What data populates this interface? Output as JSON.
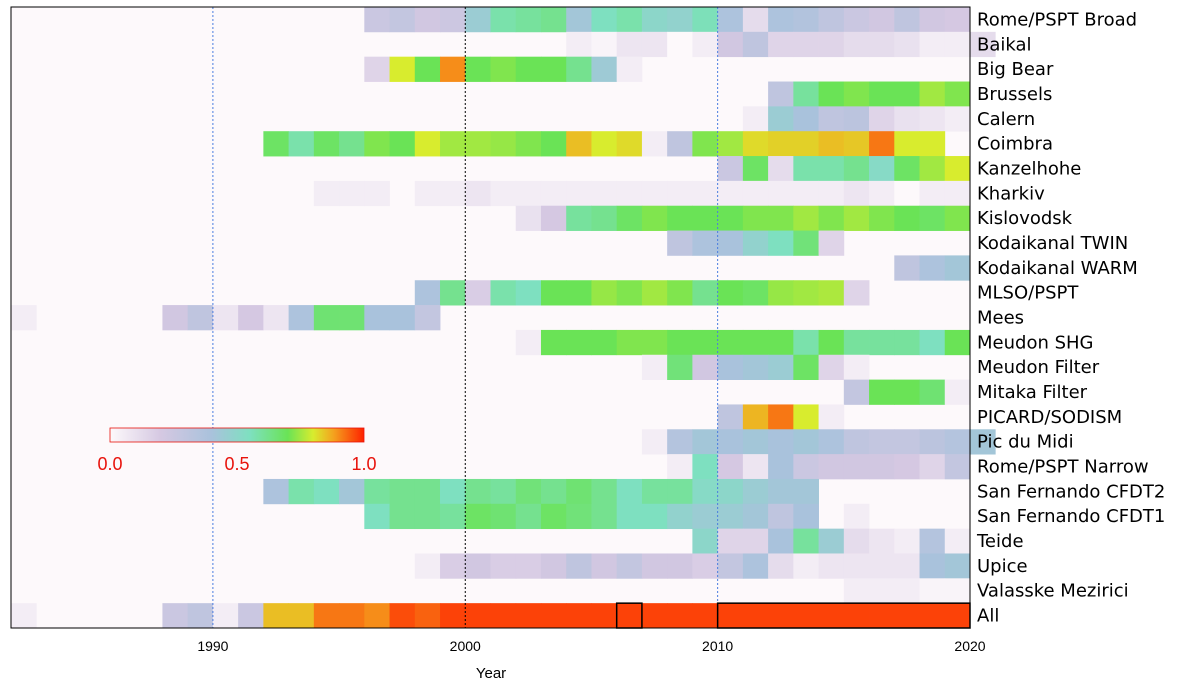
{
  "chart_data": {
    "type": "heatmap",
    "title": "",
    "xlabel": "Year",
    "ylabel": "",
    "xlim": [
      1982,
      2020
    ],
    "xticks": [
      1990,
      2000,
      2010,
      2020
    ],
    "grid_blue_years": [
      1990,
      2010
    ],
    "grid_black_years": [
      2000
    ],
    "colorbar": {
      "min": 0.0,
      "max": 1.0,
      "ticks": [
        "0.0",
        "0.5",
        "1.0"
      ]
    },
    "highlight_boxes_all_row": [
      [
        2006,
        2007
      ],
      [
        2010,
        2020
      ]
    ],
    "rows": [
      {
        "name": "Rome/PSPT Broad",
        "start": 1996,
        "values": [
          0.25,
          0.28,
          0.22,
          0.24,
          0.45,
          0.58,
          0.6,
          0.62,
          0.42,
          0.55,
          0.58,
          0.5,
          0.48,
          0.56,
          0.38,
          0.12,
          0.38,
          0.36,
          0.3,
          0.25,
          0.22,
          0.3,
          0.22,
          0.2
        ]
      },
      {
        "name": "Baikal",
        "start": 2004,
        "values": [
          0.05,
          0.02,
          0.08,
          0.08,
          0.0,
          0.05,
          0.22,
          0.3,
          0.15,
          0.15,
          0.15,
          0.12,
          0.12,
          0.1,
          0.05,
          0.05,
          0.12
        ]
      },
      {
        "name": "Big Bear",
        "start": 1996,
        "values": [
          0.15,
          0.8,
          0.7,
          0.9,
          0.7,
          0.72,
          0.7,
          0.7,
          0.62,
          0.44,
          0.05
        ]
      },
      {
        "name": "Brussels",
        "start": 2012,
        "values": [
          0.3,
          0.6,
          0.7,
          0.72,
          0.7,
          0.7,
          0.75,
          0.72
        ]
      },
      {
        "name": "Calern",
        "start": 2011,
        "values": [
          0.05,
          0.45,
          0.4,
          0.3,
          0.32,
          0.15,
          0.1,
          0.08,
          0.05
        ]
      },
      {
        "name": "Coimbra",
        "start": 1992,
        "values": [
          0.68,
          0.58,
          0.68,
          0.62,
          0.72,
          0.7,
          0.8,
          0.75,
          0.75,
          0.74,
          0.72,
          0.7,
          0.85,
          0.8,
          0.82,
          0.05,
          0.3,
          0.72,
          0.75,
          0.82,
          0.83,
          0.83,
          0.85,
          0.84,
          0.92,
          0.8,
          0.8
        ]
      },
      {
        "name": "Kanzelhohe",
        "start": 2010,
        "values": [
          0.25,
          0.68,
          0.12,
          0.58,
          0.58,
          0.62,
          0.52,
          0.68,
          0.75,
          0.8
        ]
      },
      {
        "name": "Kharkiv",
        "start": 1994,
        "values": [
          0.05,
          0.05,
          0.05,
          null,
          0.05,
          0.05,
          0.08,
          0.05,
          0.05,
          0.05,
          0.05,
          0.05,
          0.05,
          0.05,
          0.05,
          0.05,
          0.05,
          0.05,
          0.05,
          0.05,
          0.05,
          0.08,
          0.05,
          0.0,
          0.05,
          0.05
        ]
      },
      {
        "name": "Kislovodsk",
        "start": 2002,
        "values": [
          0.1,
          0.2,
          0.6,
          0.62,
          0.68,
          0.72,
          0.7,
          0.7,
          0.7,
          0.72,
          0.72,
          0.75,
          0.72,
          0.75,
          0.72,
          0.7,
          0.68,
          0.72
        ]
      },
      {
        "name": "Kodaikanal TWIN",
        "start": 2008,
        "values": [
          0.3,
          0.38,
          0.4,
          0.48,
          0.55,
          0.65,
          0.15
        ]
      },
      {
        "name": "Kodaikanal WARM",
        "start": 2017,
        "values": [
          0.3,
          0.38,
          0.42
        ]
      },
      {
        "name": "MLSO/PSPT",
        "start": 1998,
        "values": [
          0.38,
          0.62,
          0.18,
          0.58,
          0.55,
          0.7,
          0.7,
          0.74,
          0.72,
          0.75,
          0.72,
          0.62,
          0.7,
          0.68,
          0.74,
          0.75,
          0.76,
          0.15
        ]
      },
      {
        "name": "Mees",
        "start": 1982,
        "values": [
          0.05,
          null,
          null,
          null,
          null,
          null,
          0.22,
          0.3,
          0.08,
          0.2,
          0.08,
          0.38,
          0.66,
          0.66,
          0.4,
          0.4,
          0.28
        ]
      },
      {
        "name": "Meudon SHG",
        "start": 2002,
        "values": [
          0.05,
          0.7,
          0.7,
          0.7,
          0.72,
          0.72,
          0.7,
          0.7,
          0.7,
          0.7,
          0.7,
          0.58,
          0.7,
          0.6,
          0.6,
          0.6,
          0.55,
          0.7
        ]
      },
      {
        "name": "Meudon Filter",
        "start": 2007,
        "values": [
          0.05,
          0.65,
          0.22,
          0.4,
          0.42,
          0.45,
          0.68,
          0.15,
          0.05
        ]
      },
      {
        "name": "Mitaka Filter",
        "start": 2015,
        "values": [
          0.28,
          0.7,
          0.7,
          0.66,
          0.05
        ]
      },
      {
        "name": "PICARD/SODISM",
        "start": 2010,
        "values": [
          0.3,
          0.86,
          0.92,
          0.8,
          0.05
        ]
      },
      {
        "name": "Pic du Midi",
        "start": 2007,
        "values": [
          0.05,
          0.35,
          0.42,
          0.4,
          0.42,
          0.4,
          0.42,
          0.38,
          0.3,
          0.28,
          0.28,
          0.32,
          0.35,
          0.42
        ]
      },
      {
        "name": "Rome/PSPT Narrow",
        "start": 2008,
        "values": [
          0.05,
          0.55,
          0.2,
          0.08,
          0.4,
          0.25,
          0.22,
          0.22,
          0.22,
          0.2,
          0.15,
          0.28
        ]
      },
      {
        "name": "San Fernando CFDT2",
        "start": 1992,
        "values": [
          0.38,
          0.58,
          0.55,
          0.42,
          0.6,
          0.62,
          0.62,
          0.55,
          0.62,
          0.6,
          0.65,
          0.62,
          0.66,
          0.62,
          0.55,
          0.6,
          0.6,
          0.52,
          0.5,
          0.45,
          0.42,
          0.42
        ]
      },
      {
        "name": "San Fernando CFDT1",
        "start": 1996,
        "values": [
          0.55,
          0.62,
          0.62,
          0.6,
          0.68,
          0.66,
          0.62,
          0.68,
          0.65,
          0.62,
          0.55,
          0.55,
          0.48,
          0.45,
          0.45,
          0.42,
          0.3,
          0.4,
          null,
          0.05
        ]
      },
      {
        "name": "Teide",
        "start": 2009,
        "values": [
          0.5,
          0.15,
          0.15,
          0.4,
          0.6,
          0.45,
          0.12,
          0.08,
          0.05,
          0.35,
          0.05
        ]
      },
      {
        "name": "Upice",
        "start": 1998,
        "values": [
          0.05,
          0.18,
          0.22,
          0.18,
          0.18,
          0.22,
          0.3,
          0.22,
          0.28,
          0.22,
          0.22,
          0.18,
          0.28,
          0.38,
          0.12,
          0.05,
          0.08,
          0.08,
          0.08,
          0.08,
          0.4,
          0.42
        ]
      },
      {
        "name": "Valasske Mezirici",
        "start": 2015,
        "values": [
          0.05,
          0.05,
          0.05,
          0.02,
          0.02
        ]
      },
      {
        "name": "All",
        "start": 1982,
        "values": [
          0.05,
          null,
          null,
          null,
          null,
          null,
          0.25,
          0.3,
          0.05,
          0.25,
          0.85,
          0.85,
          0.92,
          0.92,
          0.9,
          0.96,
          0.94,
          0.97,
          0.97,
          0.97,
          0.97,
          0.97,
          0.97,
          0.97,
          0.97,
          0.97,
          0.97,
          0.97,
          0.97,
          0.97,
          0.97,
          0.97,
          0.97,
          0.97,
          0.97,
          0.97,
          0.97,
          0.97
        ]
      }
    ]
  }
}
